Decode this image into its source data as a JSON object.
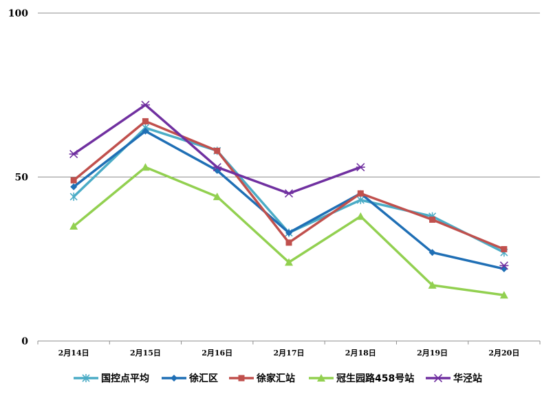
{
  "chart_data": {
    "type": "line",
    "title": "",
    "xlabel": "",
    "ylabel": "",
    "ylim": [
      0,
      100
    ],
    "yticks": [
      0,
      50,
      100
    ],
    "grid": true,
    "legend_position": "bottom",
    "categories": [
      "2月14日",
      "2月15日",
      "2月16日",
      "2月17日",
      "2月18日",
      "2月19日",
      "2月20日"
    ],
    "series": [
      {
        "name": "国控点平均",
        "color": "#4BACC6",
        "marker": "asterisk",
        "values": [
          44,
          65,
          58,
          33,
          43,
          38,
          27
        ]
      },
      {
        "name": "徐汇区",
        "color": "#1F6FB5",
        "marker": "diamond",
        "values": [
          47,
          64,
          52,
          33,
          45,
          27,
          22
        ]
      },
      {
        "name": "徐家汇站",
        "color": "#C0504D",
        "marker": "square",
        "values": [
          49,
          67,
          58,
          30,
          45,
          37,
          28
        ]
      },
      {
        "name": "冠生园路458号站",
        "color": "#92D050",
        "marker": "triangle",
        "values": [
          35,
          53,
          44,
          24,
          38,
          17,
          14
        ]
      },
      {
        "name": "华泾站",
        "color": "#7030A0",
        "marker": "star",
        "values": [
          57,
          72,
          53,
          45,
          53,
          null,
          23
        ]
      }
    ]
  }
}
